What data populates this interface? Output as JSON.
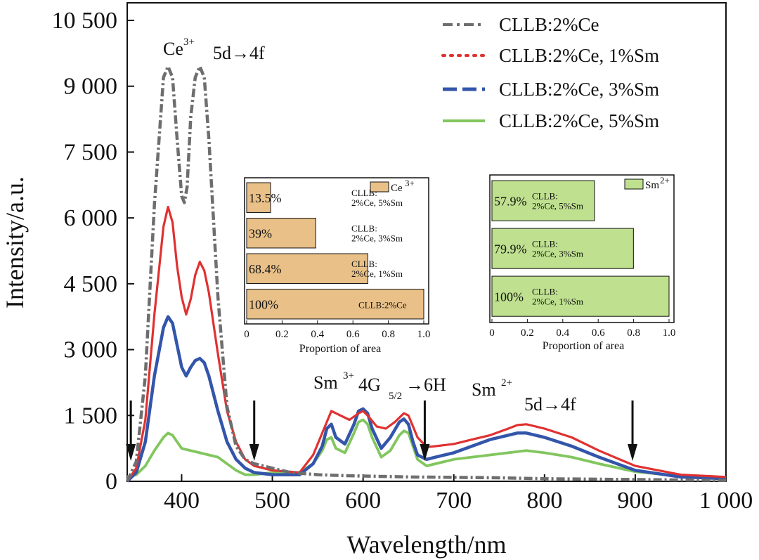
{
  "chart_data": [
    {
      "type": "line",
      "title": "",
      "xlabel": "Wavelength/nm",
      "ylabel": "Intensity/a.u.",
      "xlim": [
        340,
        1000
      ],
      "ylim": [
        0,
        10500
      ],
      "x_ticks": [
        "400",
        "500",
        "600",
        "700",
        "800",
        "900",
        "1 000"
      ],
      "y_ticks": [
        "0",
        "1 500",
        "3 000",
        "4 500",
        "6 000",
        "7 500",
        "9 000",
        "10 500"
      ],
      "legend_position": "top-right",
      "series": [
        {
          "name": "CLLB:2%Ce",
          "color": "#6e6e6e",
          "style": "dash-dot",
          "x": [
            340,
            350,
            360,
            370,
            380,
            385,
            390,
            395,
            400,
            403,
            406,
            410,
            415,
            420,
            425,
            430,
            440,
            450,
            460,
            470,
            480,
            490,
            500,
            520,
            550,
            580,
            600,
            650,
            700,
            750,
            800,
            850,
            900,
            950,
            1000
          ],
          "y": [
            0,
            450,
            2400,
            6300,
            9200,
            9450,
            9200,
            7800,
            6500,
            6350,
            6700,
            8300,
            9200,
            9450,
            9200,
            7800,
            4200,
            1700,
            800,
            500,
            400,
            350,
            300,
            200,
            150,
            130,
            120,
            100,
            90,
            80,
            60,
            50,
            40,
            30,
            20
          ]
        },
        {
          "name": "CLLB:2%Ce, 1%Sm",
          "color": "#e03131",
          "style": "dotted",
          "x": [
            340,
            350,
            360,
            370,
            380,
            385,
            390,
            395,
            400,
            405,
            410,
            415,
            420,
            425,
            430,
            440,
            450,
            460,
            470,
            480,
            500,
            530,
            545,
            555,
            565,
            575,
            585,
            595,
            600,
            605,
            615,
            625,
            635,
            645,
            650,
            660,
            670,
            680,
            700,
            720,
            740,
            760,
            770,
            780,
            800,
            830,
            860,
            900,
            950,
            1000
          ],
          "y": [
            0,
            300,
            1400,
            3800,
            5800,
            6250,
            5900,
            4900,
            4200,
            3800,
            4150,
            4700,
            5000,
            4800,
            4300,
            2900,
            1600,
            900,
            500,
            350,
            250,
            200,
            600,
            1100,
            1600,
            1500,
            1400,
            1550,
            1600,
            1500,
            1250,
            1200,
            1350,
            1550,
            1500,
            1000,
            780,
            800,
            850,
            950,
            1050,
            1200,
            1280,
            1300,
            1200,
            1000,
            700,
            350,
            150,
            100
          ]
        },
        {
          "name": "CLLB:2%Ce, 3%Sm",
          "color": "#3355aa",
          "style": "dash",
          "x": [
            340,
            350,
            360,
            370,
            380,
            385,
            390,
            395,
            400,
            405,
            410,
            415,
            420,
            425,
            430,
            440,
            450,
            460,
            470,
            480,
            500,
            530,
            545,
            555,
            560,
            565,
            570,
            580,
            590,
            595,
            600,
            605,
            610,
            620,
            630,
            640,
            645,
            650,
            655,
            660,
            670,
            680,
            700,
            720,
            740,
            760,
            770,
            780,
            800,
            830,
            860,
            900,
            950,
            1000
          ],
          "y": [
            0,
            200,
            900,
            2400,
            3500,
            3750,
            3600,
            3100,
            2600,
            2400,
            2600,
            2750,
            2800,
            2700,
            2400,
            1600,
            900,
            500,
            300,
            200,
            150,
            150,
            400,
            800,
            1200,
            1300,
            1000,
            850,
            1300,
            1600,
            1650,
            1550,
            1200,
            750,
            1000,
            1350,
            1420,
            1300,
            900,
            600,
            500,
            550,
            650,
            800,
            950,
            1050,
            1100,
            1100,
            1000,
            800,
            550,
            250,
            100,
            60
          ]
        },
        {
          "name": "CLLB:2%Ce, 5%Sm",
          "color": "#82c65e",
          "style": "solid",
          "x": [
            340,
            350,
            360,
            370,
            380,
            385,
            390,
            395,
            400,
            410,
            420,
            430,
            440,
            450,
            460,
            470,
            480,
            500,
            530,
            545,
            555,
            560,
            565,
            570,
            580,
            590,
            595,
            600,
            605,
            610,
            620,
            630,
            640,
            645,
            650,
            655,
            660,
            670,
            680,
            700,
            720,
            740,
            760,
            780,
            800,
            830,
            860,
            900,
            950,
            1000
          ],
          "y": [
            100,
            150,
            350,
            700,
            1000,
            1100,
            1050,
            900,
            750,
            700,
            650,
            600,
            550,
            400,
            250,
            150,
            150,
            200,
            200,
            400,
            700,
            950,
            1000,
            750,
            650,
            1100,
            1350,
            1400,
            1300,
            1000,
            550,
            700,
            1050,
            1150,
            1100,
            800,
            500,
            350,
            400,
            500,
            550,
            600,
            650,
            700,
            650,
            550,
            400,
            220,
            120,
            80
          ]
        }
      ],
      "annotations": {
        "ce_ion": "Ce",
        "ce_charge": "3+",
        "ce_transition": "5d→4f",
        "sm3_ion": "Sm",
        "sm3_charge": "3+",
        "sm3_transition_a": "4G",
        "sm3_transition_sub": "5/2",
        "sm3_transition_b": "→6H",
        "sm2_ion": "Sm",
        "sm2_charge": "2+",
        "sm2_transition": "5d→4f",
        "arrow_positions_nm": [
          344,
          480,
          668,
          897
        ]
      }
    },
    {
      "type": "bar",
      "orientation": "horizontal",
      "title": "",
      "legend": "Ce",
      "legend_sup": "3+",
      "color": "#e8c088",
      "xlabel": "Proportion of area",
      "xlim": [
        0,
        1.0
      ],
      "x_ticks": [
        "0",
        "0.2",
        "0.4",
        "0.6",
        "0.8",
        "1.0"
      ],
      "bars": [
        {
          "label_line1": "CLLB:",
          "label_line2": "2%Ce, 5%Sm",
          "value": 0.135,
          "pct": "13.5%"
        },
        {
          "label_line1": "CLLB:",
          "label_line2": "2%Ce, 3%Sm",
          "value": 0.39,
          "pct": "39%"
        },
        {
          "label_line1": "CLLB:",
          "label_line2": "2%Ce, 1%Sm",
          "value": 0.684,
          "pct": "68.4%"
        },
        {
          "label_line1": "CLLB:2%Ce",
          "label_line2": "",
          "value": 1.0,
          "pct": "100%"
        }
      ]
    },
    {
      "type": "bar",
      "orientation": "horizontal",
      "title": "",
      "legend": "Sm",
      "legend_sup": "2+",
      "color": "#bfe08f",
      "xlabel": "Proportion of area",
      "xlim": [
        0,
        1.0
      ],
      "x_ticks": [
        "0",
        "0.2",
        "0.4",
        "0.6",
        "0.8",
        "1.0"
      ],
      "bars": [
        {
          "label_line1": "CLLB:",
          "label_line2": "2%Ce, 5%Sm",
          "value": 0.579,
          "pct": "57.9%"
        },
        {
          "label_line1": "CLLB:",
          "label_line2": "2%Ce, 3%Sm",
          "value": 0.799,
          "pct": "79.9%"
        },
        {
          "label_line1": "CLLB:",
          "label_line2": "2%Ce, 1%Sm",
          "value": 1.0,
          "pct": "100%"
        }
      ]
    }
  ]
}
